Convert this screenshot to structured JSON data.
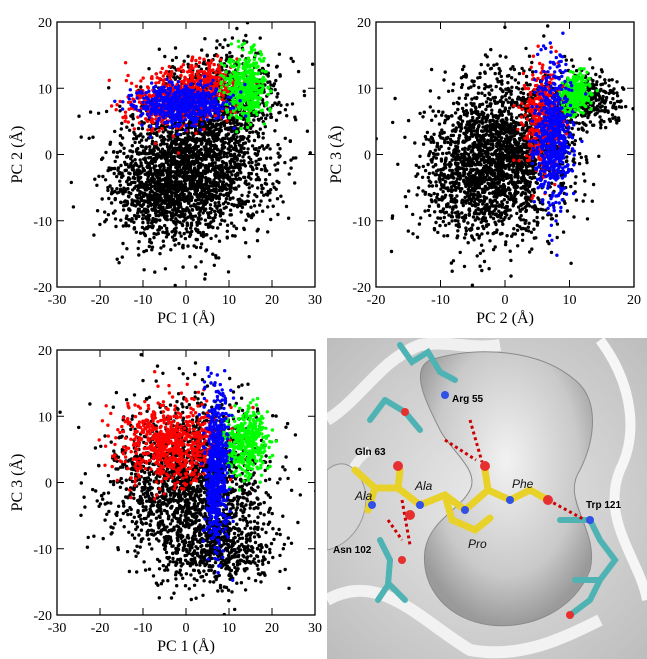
{
  "chart_data": [
    {
      "id": "pc1-pc2",
      "type": "scatter",
      "title": "",
      "xlabel": "PC 1 (Å)",
      "ylabel": "PC 2 (Å)",
      "xlim": [
        -30,
        30
      ],
      "ylim": [
        -20,
        20
      ],
      "xticks": [
        -30,
        -20,
        -10,
        0,
        10,
        20,
        30
      ],
      "yticks": [
        -20,
        -10,
        0,
        10,
        20
      ],
      "series": [
        {
          "color": "#000000",
          "clusters": [
            {
              "x": 2,
              "y": -2,
              "sx": 9,
              "sy": 5,
              "n": 1800
            },
            {
              "x": 8,
              "y": 8,
              "sx": 7,
              "sy": 4,
              "n": 700
            },
            {
              "x": -5,
              "y": -6,
              "sx": 6,
              "sy": 4,
              "n": 600
            }
          ]
        },
        {
          "color": "#ff0000",
          "clusters": [
            {
              "x": -2,
              "y": 8,
              "sx": 6,
              "sy": 2,
              "n": 500
            },
            {
              "x": 5,
              "y": 11,
              "sx": 4,
              "sy": 1.5,
              "n": 200
            }
          ]
        },
        {
          "color": "#00ff00",
          "clusters": [
            {
              "x": 14,
              "y": 10,
              "sx": 2.3,
              "sy": 2.5,
              "n": 450
            }
          ]
        },
        {
          "color": "#0000ff",
          "clusters": [
            {
              "x": -1,
              "y": 7.5,
              "sx": 5,
              "sy": 1.5,
              "n": 600
            }
          ]
        }
      ]
    },
    {
      "id": "pc2-pc3",
      "type": "scatter",
      "title": "",
      "xlabel": "PC 2 (Å)",
      "ylabel": "PC 3 (Å)",
      "xlim": [
        -20,
        20
      ],
      "ylim": [
        -20,
        20
      ],
      "xticks": [
        -20,
        -10,
        0,
        10,
        20
      ],
      "yticks": [
        -20,
        -10,
        0,
        10,
        20
      ],
      "series": [
        {
          "color": "#000000",
          "clusters": [
            {
              "x": 0,
              "y": 0,
              "sx": 5,
              "sy": 6,
              "n": 1700
            },
            {
              "x": -6,
              "y": -4,
              "sx": 4,
              "sy": 5,
              "n": 600
            },
            {
              "x": 12,
              "y": 8,
              "sx": 3,
              "sy": 2,
              "n": 400
            }
          ]
        },
        {
          "color": "#ff0000",
          "clusters": [
            {
              "x": 6,
              "y": 5,
              "sx": 1.5,
              "sy": 4,
              "n": 400
            }
          ]
        },
        {
          "color": "#00ff00",
          "clusters": [
            {
              "x": 11,
              "y": 9,
              "sx": 1.2,
              "sy": 1.5,
              "n": 300
            }
          ]
        },
        {
          "color": "#0000ff",
          "clusters": [
            {
              "x": 7.5,
              "y": 3,
              "sx": 1.4,
              "sy": 5,
              "n": 600
            }
          ]
        }
      ]
    },
    {
      "id": "pc1-pc3",
      "type": "scatter",
      "title": "",
      "xlabel": "PC 1 (Å)",
      "ylabel": "PC 3 (Å)",
      "xlim": [
        -30,
        30
      ],
      "ylim": [
        -20,
        20
      ],
      "xticks": [
        -30,
        -20,
        -10,
        0,
        10,
        20,
        30
      ],
      "yticks": [
        -20,
        -10,
        0,
        10,
        20
      ],
      "series": [
        {
          "color": "#000000",
          "clusters": [
            {
              "x": 0,
              "y": 0,
              "sx": 9,
              "sy": 6,
              "n": 1800
            },
            {
              "x": 8,
              "y": -10,
              "sx": 6,
              "sy": 3,
              "n": 500
            }
          ]
        },
        {
          "color": "#ff0000",
          "clusters": [
            {
              "x": -3,
              "y": 6,
              "sx": 6,
              "sy": 3,
              "n": 700
            }
          ]
        },
        {
          "color": "#00ff00",
          "clusters": [
            {
              "x": 14,
              "y": 6,
              "sx": 2.5,
              "sy": 2.5,
              "n": 400
            }
          ]
        },
        {
          "color": "#0000ff",
          "clusters": [
            {
              "x": 7,
              "y": 2,
              "sx": 1.3,
              "sy": 6,
              "n": 600
            }
          ]
        }
      ]
    }
  ],
  "structure_panel": {
    "labels": {
      "arg55": "Arg 55",
      "gln63": "Gln 63",
      "phe": "Phe",
      "ala1": "Ala",
      "ala2": "Ala",
      "trp121": "Trp 121",
      "pro": "Pro",
      "asn102": "Asn 102"
    },
    "colors": {
      "ligand": "#e8d22a",
      "protein_sticks": "#4fb3b3",
      "surface": "#cfcfcf",
      "hbond": "#cc0000"
    }
  }
}
